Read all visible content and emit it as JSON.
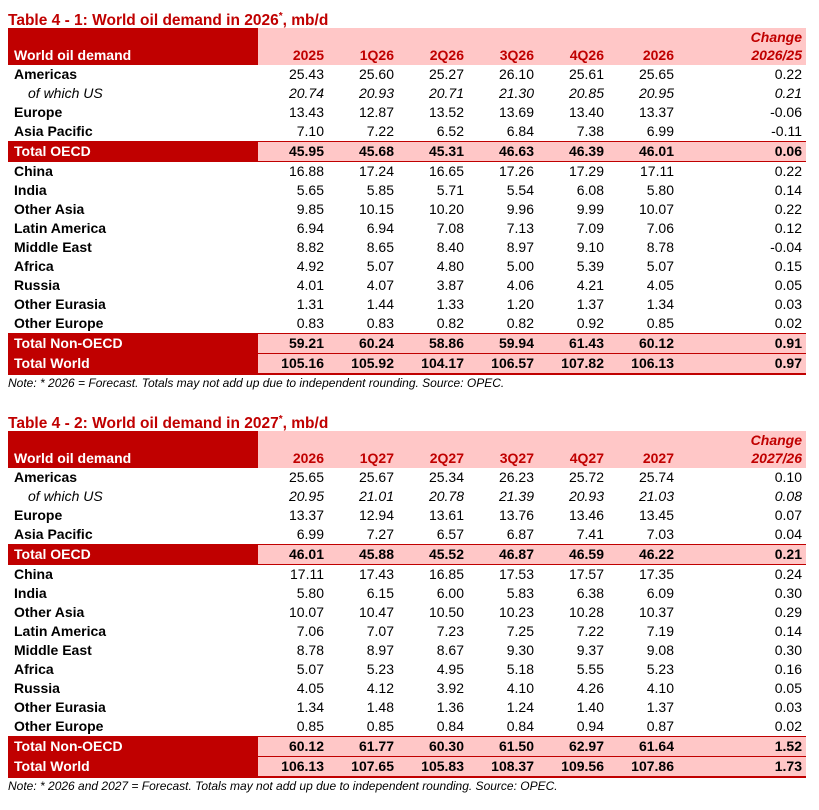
{
  "tables": [
    {
      "title": "Table 4 - 1: World oil demand in 2026",
      "title_star": "*",
      "title_suffix": ", mb/d",
      "header_label": "World oil demand",
      "change_top": "Change",
      "columns": [
        "2025",
        "1Q26",
        "2Q26",
        "3Q26",
        "4Q26",
        "2026",
        "2026/25"
      ],
      "rows": [
        {
          "label": "Americas",
          "kind": "normal",
          "values": [
            "25.43",
            "25.60",
            "25.27",
            "26.10",
            "25.61",
            "25.65",
            "0.22"
          ]
        },
        {
          "label": "of which US",
          "kind": "sub",
          "values": [
            "20.74",
            "20.93",
            "20.71",
            "21.30",
            "20.85",
            "20.95",
            "0.21"
          ]
        },
        {
          "label": "Europe",
          "kind": "normal",
          "values": [
            "13.43",
            "12.87",
            "13.52",
            "13.69",
            "13.40",
            "13.37",
            "-0.06"
          ]
        },
        {
          "label": "Asia Pacific",
          "kind": "normal",
          "values": [
            "7.10",
            "7.22",
            "6.52",
            "6.84",
            "7.38",
            "6.99",
            "-0.11"
          ]
        },
        {
          "label": "Total OECD",
          "kind": "total",
          "values": [
            "45.95",
            "45.68",
            "45.31",
            "46.63",
            "46.39",
            "46.01",
            "0.06"
          ]
        },
        {
          "label": "China",
          "kind": "normal",
          "values": [
            "16.88",
            "17.24",
            "16.65",
            "17.26",
            "17.29",
            "17.11",
            "0.22"
          ]
        },
        {
          "label": "India",
          "kind": "normal",
          "values": [
            "5.65",
            "5.85",
            "5.71",
            "5.54",
            "6.08",
            "5.80",
            "0.14"
          ]
        },
        {
          "label": "Other Asia",
          "kind": "normal",
          "values": [
            "9.85",
            "10.15",
            "10.20",
            "9.96",
            "9.99",
            "10.07",
            "0.22"
          ]
        },
        {
          "label": "Latin America",
          "kind": "normal",
          "values": [
            "6.94",
            "6.94",
            "7.08",
            "7.13",
            "7.09",
            "7.06",
            "0.12"
          ]
        },
        {
          "label": "Middle East",
          "kind": "normal",
          "values": [
            "8.82",
            "8.65",
            "8.40",
            "8.97",
            "9.10",
            "8.78",
            "-0.04"
          ]
        },
        {
          "label": "Africa",
          "kind": "normal",
          "values": [
            "4.92",
            "5.07",
            "4.80",
            "5.00",
            "5.39",
            "5.07",
            "0.15"
          ]
        },
        {
          "label": "Russia",
          "kind": "normal",
          "values": [
            "4.01",
            "4.07",
            "3.87",
            "4.06",
            "4.21",
            "4.05",
            "0.05"
          ]
        },
        {
          "label": "Other Eurasia",
          "kind": "normal",
          "values": [
            "1.31",
            "1.44",
            "1.33",
            "1.20",
            "1.37",
            "1.34",
            "0.03"
          ]
        },
        {
          "label": "Other Europe",
          "kind": "normal",
          "values": [
            "0.83",
            "0.83",
            "0.82",
            "0.82",
            "0.92",
            "0.85",
            "0.02"
          ]
        },
        {
          "label": "Total Non-OECD",
          "kind": "total",
          "values": [
            "59.21",
            "60.24",
            "58.86",
            "59.94",
            "61.43",
            "60.12",
            "0.91"
          ]
        },
        {
          "label": "Total World",
          "kind": "grand",
          "values": [
            "105.16",
            "105.92",
            "104.17",
            "106.57",
            "107.82",
            "106.13",
            "0.97"
          ]
        }
      ],
      "note": "Note: * 2026 = Forecast. Totals may not add up due to independent rounding. Source: OPEC."
    },
    {
      "title": "Table 4 - 2: World oil demand in 2027",
      "title_star": "*",
      "title_suffix": ", mb/d",
      "header_label": "World oil demand",
      "change_top": "Change",
      "columns": [
        "2026",
        "1Q27",
        "2Q27",
        "3Q27",
        "4Q27",
        "2027",
        "2027/26"
      ],
      "rows": [
        {
          "label": "Americas",
          "kind": "normal",
          "values": [
            "25.65",
            "25.67",
            "25.34",
            "26.23",
            "25.72",
            "25.74",
            "0.10"
          ]
        },
        {
          "label": "of which US",
          "kind": "sub",
          "values": [
            "20.95",
            "21.01",
            "20.78",
            "21.39",
            "20.93",
            "21.03",
            "0.08"
          ]
        },
        {
          "label": "Europe",
          "kind": "normal",
          "values": [
            "13.37",
            "12.94",
            "13.61",
            "13.76",
            "13.46",
            "13.45",
            "0.07"
          ]
        },
        {
          "label": "Asia Pacific",
          "kind": "normal",
          "values": [
            "6.99",
            "7.27",
            "6.57",
            "6.87",
            "7.41",
            "7.03",
            "0.04"
          ]
        },
        {
          "label": "Total OECD",
          "kind": "total",
          "values": [
            "46.01",
            "45.88",
            "45.52",
            "46.87",
            "46.59",
            "46.22",
            "0.21"
          ]
        },
        {
          "label": "China",
          "kind": "normal",
          "values": [
            "17.11",
            "17.43",
            "16.85",
            "17.53",
            "17.57",
            "17.35",
            "0.24"
          ]
        },
        {
          "label": "India",
          "kind": "normal",
          "values": [
            "5.80",
            "6.15",
            "6.00",
            "5.83",
            "6.38",
            "6.09",
            "0.30"
          ]
        },
        {
          "label": "Other Asia",
          "kind": "normal",
          "values": [
            "10.07",
            "10.47",
            "10.50",
            "10.23",
            "10.28",
            "10.37",
            "0.29"
          ]
        },
        {
          "label": "Latin America",
          "kind": "normal",
          "values": [
            "7.06",
            "7.07",
            "7.23",
            "7.25",
            "7.22",
            "7.19",
            "0.14"
          ]
        },
        {
          "label": "Middle East",
          "kind": "normal",
          "values": [
            "8.78",
            "8.97",
            "8.67",
            "9.30",
            "9.37",
            "9.08",
            "0.30"
          ]
        },
        {
          "label": "Africa",
          "kind": "normal",
          "values": [
            "5.07",
            "5.23",
            "4.95",
            "5.18",
            "5.55",
            "5.23",
            "0.16"
          ]
        },
        {
          "label": "Russia",
          "kind": "normal",
          "values": [
            "4.05",
            "4.12",
            "3.92",
            "4.10",
            "4.26",
            "4.10",
            "0.05"
          ]
        },
        {
          "label": "Other Eurasia",
          "kind": "normal",
          "values": [
            "1.34",
            "1.48",
            "1.36",
            "1.24",
            "1.40",
            "1.37",
            "0.03"
          ]
        },
        {
          "label": "Other Europe",
          "kind": "normal",
          "values": [
            "0.85",
            "0.85",
            "0.84",
            "0.84",
            "0.94",
            "0.87",
            "0.02"
          ]
        },
        {
          "label": "Total Non-OECD",
          "kind": "total",
          "values": [
            "60.12",
            "61.77",
            "60.30",
            "61.50",
            "62.97",
            "61.64",
            "1.52"
          ]
        },
        {
          "label": "Total World",
          "kind": "grand",
          "values": [
            "106.13",
            "107.65",
            "105.83",
            "108.37",
            "109.56",
            "107.86",
            "1.73"
          ]
        }
      ],
      "note": "Note: * 2026 and 2027 = Forecast. Totals may not add up due to independent rounding. Source: OPEC."
    }
  ]
}
